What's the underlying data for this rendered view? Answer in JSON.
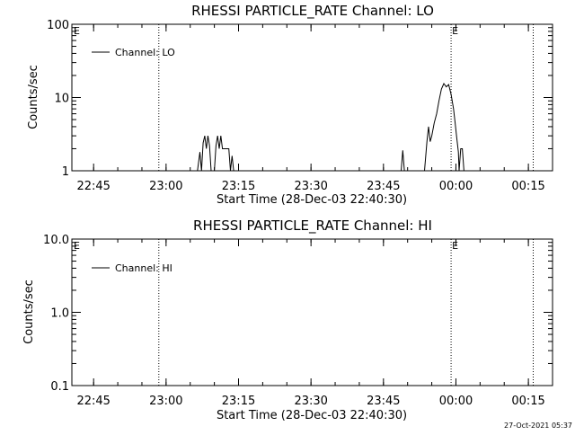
{
  "timestamp": "27-Oct-2021 05:37",
  "chart_data": [
    {
      "type": "line",
      "title": "RHESSI PARTICLE_RATE Channel: LO",
      "xlabel": "Start Time (28-Dec-03 22:40:30)",
      "ylabel": "Counts/sec",
      "yscale": "log",
      "xlim": [
        "22:40:30",
        "00:20:00"
      ],
      "ylim": [
        1,
        100
      ],
      "x_ticks": [
        "22:45",
        "23:00",
        "23:15",
        "23:30",
        "23:45",
        "00:00",
        "00:15"
      ],
      "y_ticks": [
        "1",
        "10",
        "100"
      ],
      "grid": false,
      "legend": "top-left",
      "legend_entries": [
        "Channel: LO"
      ],
      "event_markers": [
        {
          "time": "22:58:30",
          "label": ""
        },
        {
          "time": "23:59:00",
          "label": "E"
        },
        {
          "time": "00:16:00",
          "label": ""
        }
      ],
      "edge_labels": [
        "E"
      ],
      "series": [
        {
          "name": "Channel: LO",
          "points": [
            [
              "23:06:30",
              1
            ],
            [
              "23:07:00",
              1.8
            ],
            [
              "23:07:20",
              1
            ],
            [
              "23:07:40",
              2.4
            ],
            [
              "23:08:00",
              3
            ],
            [
              "23:08:20",
              2
            ],
            [
              "23:08:40",
              3
            ],
            [
              "23:09:00",
              2.2
            ],
            [
              "23:09:20",
              1
            ],
            [
              "23:10:00",
              1
            ],
            [
              "23:10:20",
              2.2
            ],
            [
              "23:10:40",
              3
            ],
            [
              "23:11:00",
              2
            ],
            [
              "23:11:20",
              3
            ],
            [
              "23:11:40",
              2
            ],
            [
              "23:12:00",
              2
            ],
            [
              "23:12:30",
              2
            ],
            [
              "23:13:00",
              2
            ],
            [
              "23:13:20",
              1
            ],
            [
              "23:13:40",
              1.6
            ],
            [
              "23:14:00",
              1
            ],
            [
              "23:48:40",
              1
            ],
            [
              "23:49:00",
              1.9
            ],
            [
              "23:49:20",
              1
            ],
            [
              "23:53:30",
              1
            ],
            [
              "23:54:00",
              2.5
            ],
            [
              "23:54:20",
              4
            ],
            [
              "23:54:40",
              2.5
            ],
            [
              "23:55:00",
              3
            ],
            [
              "23:55:30",
              4.5
            ],
            [
              "23:56:00",
              6
            ],
            [
              "23:56:30",
              9
            ],
            [
              "23:57:00",
              13
            ],
            [
              "23:57:30",
              15.5
            ],
            [
              "23:58:00",
              14
            ],
            [
              "23:58:30",
              15
            ],
            [
              "23:59:00",
              11
            ],
            [
              "23:59:30",
              7
            ],
            [
              "23:59:50",
              4.5
            ],
            [
              "00:00:10",
              2.8
            ],
            [
              "00:00:30",
              1.8
            ],
            [
              "00:00:40",
              1
            ],
            [
              "00:01:00",
              2
            ],
            [
              "00:01:20",
              2
            ],
            [
              "00:01:40",
              1
            ]
          ]
        }
      ]
    },
    {
      "type": "line",
      "title": "RHESSI PARTICLE_RATE Channel: HI",
      "xlabel": "Start Time (28-Dec-03 22:40:30)",
      "ylabel": "Counts/sec",
      "yscale": "log",
      "xlim": [
        "22:40:30",
        "00:20:00"
      ],
      "ylim": [
        0.1,
        10
      ],
      "x_ticks": [
        "22:45",
        "23:00",
        "23:15",
        "23:30",
        "23:45",
        "00:00",
        "00:15"
      ],
      "y_ticks": [
        "0.1",
        "1.0",
        "10.0"
      ],
      "grid": false,
      "legend": "top-left",
      "legend_entries": [
        "Channel: HI"
      ],
      "event_markers": [
        {
          "time": "22:58:30",
          "label": ""
        },
        {
          "time": "23:59:00",
          "label": "E"
        },
        {
          "time": "00:16:00",
          "label": ""
        }
      ],
      "edge_labels": [
        "E"
      ],
      "series": [
        {
          "name": "Channel: HI",
          "points": []
        }
      ]
    }
  ]
}
